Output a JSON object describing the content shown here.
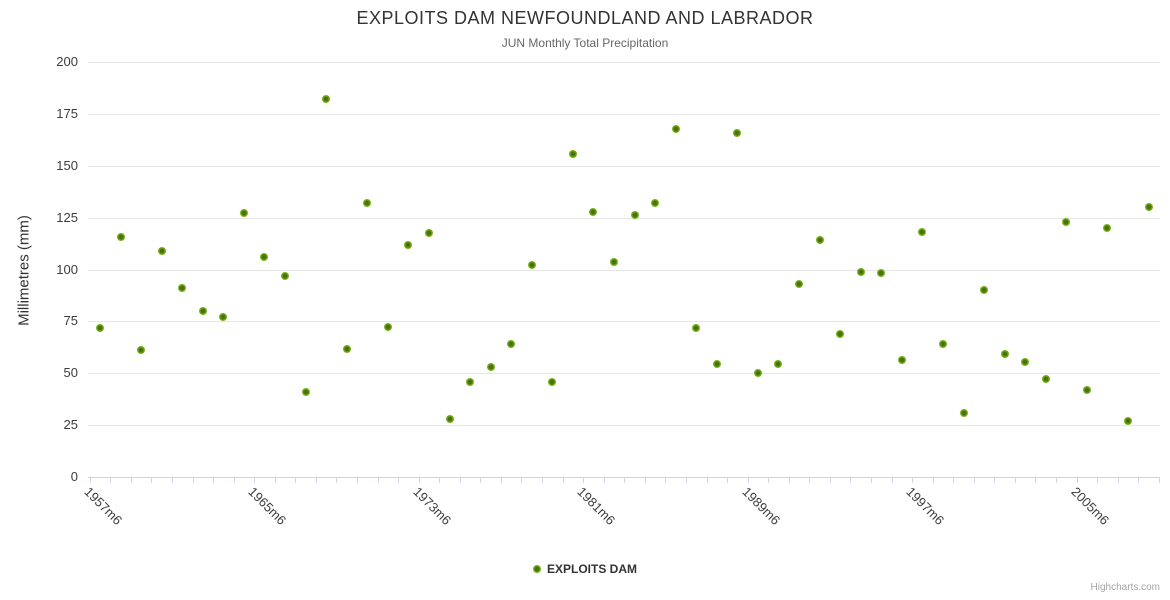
{
  "title": "EXPLOITS DAM NEWFOUNDLAND AND LABRADOR",
  "subtitle": "JUN Monthly Total Precipitation",
  "legend": {
    "label": "EXPLOITS DAM"
  },
  "credits": "Highcharts.com",
  "colors": {
    "marker_outer": "#7fb31c",
    "marker_inner": "#44720c",
    "gridline": "#e6e6e6",
    "axis": "#ccd6eb"
  },
  "chart_data": {
    "type": "scatter",
    "title": "EXPLOITS DAM NEWFOUNDLAND AND LABRADOR",
    "subtitle": "JUN Monthly Total Precipitation",
    "xlabel": "",
    "ylabel": "Millimetres (mm)",
    "ylim": [
      0,
      200
    ],
    "yticks": [
      0,
      25,
      50,
      75,
      100,
      125,
      150,
      175,
      200
    ],
    "grid": "horizontal",
    "legend_position": "bottom",
    "x_visible_labels": [
      "1957m6",
      "1965m6",
      "1973m6",
      "1981m6",
      "1989m6",
      "1997m6",
      "2005m6"
    ],
    "categories": [
      "1957m6",
      "1958m6",
      "1959m6",
      "1960m6",
      "1961m6",
      "1962m6",
      "1963m6",
      "1964m6",
      "1965m6",
      "1966m6",
      "1967m6",
      "1968m6",
      "1969m6",
      "1970m6",
      "1971m6",
      "1972m6",
      "1973m6",
      "1974m6",
      "1975m6",
      "1976m6",
      "1977m6",
      "1978m6",
      "1979m6",
      "1980m6",
      "1981m6",
      "1982m6",
      "1983m6",
      "1984m6",
      "1985m6",
      "1986m6",
      "1987m6",
      "1988m6",
      "1989m6",
      "1990m6",
      "1991m6",
      "1992m6",
      "1993m6",
      "1994m6",
      "1995m6",
      "1996m6",
      "1997m6",
      "1998m6",
      "1999m6",
      "2000m6",
      "2001m6",
      "2002m6",
      "2003m6",
      "2004m6",
      "2005m6",
      "2006m6",
      "2007m6",
      "2008m6"
    ],
    "series": [
      {
        "name": "EXPLOITS DAM",
        "color": "#7fb31c",
        "values": [
          72,
          115.5,
          61,
          109,
          91,
          80,
          77,
          127,
          106,
          97,
          41,
          182,
          61.5,
          132,
          72.5,
          112,
          117.5,
          28,
          46,
          53,
          64,
          102,
          46,
          155.5,
          127.5,
          103.5,
          126.5,
          132,
          167.5,
          72,
          54.5,
          166,
          50,
          54.5,
          93,
          114,
          69,
          99,
          98.5,
          56.5,
          118,
          64,
          31,
          90,
          59.5,
          55.5,
          47,
          123,
          42,
          120,
          27,
          130
        ]
      }
    ]
  }
}
